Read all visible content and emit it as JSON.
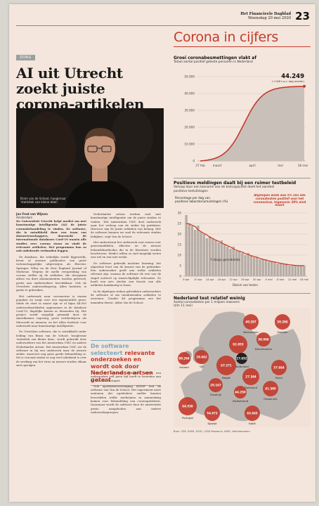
{
  "masthead": {
    "paper": "Het Financieele Dagblad",
    "date": "Woensdag 20 mei 2020",
    "page_number": "23"
  },
  "article": {
    "kicker": "ZORG",
    "headline": "AI uit Utrecht zoekt juiste corona-artikelen",
    "photo_caption_line1": "Bram van de Schoot, hoogleraar",
    "photo_caption_line2": "'statistiek van kleine data'.",
    "author": "Jan Fred van Wijnen",
    "place": "Amsterdam",
    "intro": "De Universiteit Utrecht helpt medici om met kunstmatige intelligentie (AI) de juiste coronabehandeling te vinden. De software, die is ontwikkeld door een team van datawetenschappers, doorzoekt de internationale databases Cord-19 waarin alle studies over corona staan en vindt de relevante artikelen. Het programma kan zo ook onbekende verbanden leggen.",
    "col1_paras": [
      "De database, die wekelijks wordt bijgewerkt, bevat al enorme publicaties van grote wetenschappelijke uitgeverijen als Elsevier, Springer, Wiley en de New England Journal of Medicine. Wegens de snelle verspreiding van corona stellen zij de artikelen, die doorgaans alleen via dure abonnementen worden geleverd, gratis aan onderzoekers beschikbaar. Ook de Utrechtse onderzoeksgroep, Allen Institute, is gratis te gebruiken.",
      "Het onderzoek naar coronavirus is enorm populair en zorgt voor een exponentiële groei. Sinds de start in maart zijn er al bijna 44.000 onderzoeksartikelen opgenomen in de database Cord-19, dagelijks komen er duizenden bij. Het project wordt mogelijk gemaakt door de Amerikaanse regering, grote techbedrijven als Microsoft en Amazon, en het Allen Institute voor onderzoek naar kunstmatige intelligentie.",
      "De Utrechtse software, die is ontwikkeld onder leiding van Bram van de Schoot, hoogleraar 'statistiek van kleine data', wordt gebruikt door onderzoekers van het Amsterdam UMC en andere Nederlandse artsen. Het Amsterdam UMC zet de software in bij een onderzoek naar de nieuwe ziekte, waarvoor nog geen goede behandeling is. Dit is cruciaal omdat er nog veel onbekend is over de werking van het virus en nieuwe studies elkaar snel opvolgen."
    ],
    "col2_paras": [
      "Nederlandse artsen werken snel met kunstmatige intelligentie om de juiste studies te vinden. 'Het Amsterdam UMC doet onderzoek naar het verloop van de ziekte bij patiënten. Hiervoor zijn de juiste artikelen van belang. Met de software kunnen we snel de relevante studies bekijken', zegt Van de Schoot.",
      "Het ondersteunt het onderzoek voor artsen over geneesmiddelen, effecten en de nieuwe behandelmethoden die in de literatuur worden beschreven. Medici willen zo snel mogelijk weten wat wel en wat niet werkt.",
      "De software gebruikt machine learning: het algoritme leert van de keuzes van de gebruiker. Een onderzoeker geeft aan welke artikelen relevant zijn, waarna de software de rest van de stapel sorteert op waarschijnlijke relevantie. Zo hoeft een arts slechts een fractie van alle artikelen handmatig te lezen.",
      "In de afgelopen weken gebruikten onderzoekers de software al om tienduizenden artikelen te screenen. 'Zonder dit programma zou het maanden duren', aldus Van de Schoot."
    ],
    "pullquote_lead": "De software selecteert",
    "pullquote_accent": "relevante onderzoeken en wordt ook door Nederlandse artsen getest",
    "col3_paras": [
      "voor de relevante artikelen, zodat een onderzoeker zelf geen tijd hoeft te besteden aan de rest van de stapel.",
      "Ook apothekersvereniging KNMP test de software van Van de Schoot. Het experiment moet aantonen dat apothekers sneller kunnen beoordelen welke medicijnen in aanmerking komen voor behandeling van coronapatiënten. Daarnaast wordt de software door de universiteit gratis aangeboden aan andere onderzoeksgroepen."
    ],
    "col4_paras": [
      "Tijdens de eerste weken was het programma vooral bedoeld om de grootste bulk van literatuur te doorzoeken. Nu kijkt het team ook naar andere toepassingen. 'De software kan in principe voor elk onderzoeksveld worden ingezet', zegt Van de Schoot."
    ]
  },
  "sidebar": {
    "title": "Corona in cijfers",
    "growth": {
      "title": "Groei coronabesmettingen vlakt af",
      "subtitle": "Totaal aantal positief geteste personen in Nederland",
      "last_value": "44.249",
      "last_note": "(+108 t.o.v. dag eerder)",
      "x_labels": [
        "27 feb",
        "maart",
        "april",
        "mei",
        "18 mei"
      ],
      "y_ticks": [
        "50.000",
        "40.000",
        "30.000",
        "20.000",
        "10.000",
        "0"
      ]
    },
    "positive": {
      "title": "Positieve meldingen daalt bij een ruimer testbeleid",
      "subtitle_line1": "Verloop door een toename van de testcapaciteit deelt het aandeel",
      "subtitle_line2": "positieve testuitslagen",
      "ylabel_line1": "Percentage per dag van",
      "ylabel_line2": "positieve laboratoriumuitslagen (%)",
      "annotation": "Afgelopen week was 5% van alle coronatesten positief voor het coronavirus, tegenover 29% eind maart",
      "avg_label": "7-daags gemiddelde",
      "x_labels": [
        "6 apr",
        "10 apr",
        "14 apr",
        "18 apr",
        "22 apr",
        "26 apr",
        "30 apr",
        "4 mei",
        "8 mei",
        "12 mei",
        "16 mei"
      ],
      "xlabel": "Datum van testen",
      "y_ticks": [
        "30",
        "25",
        "20",
        "15",
        "10",
        "5",
        "0"
      ]
    },
    "map": {
      "title": "Nederland test relatief weinig",
      "subtitle_line1": "Aantal coronatesten per 1 miljoen inwoners",
      "subtitle_line2": "(t/m 11 mei)",
      "source": "Bron: CBS, RIVM, ECDC, GGD Research, WHO, Worldometers",
      "bubbles": [
        {
          "value": "40.287",
          "label": "Noorwegen"
        },
        {
          "value": "30.296",
          "label": "Zweden"
        },
        {
          "value": "29.662",
          "label": "UK"
        },
        {
          "value": "38.068",
          "label": "Denemarken"
        },
        {
          "value": "17.652",
          "label": "Nederland"
        },
        {
          "value": "67.271",
          "label": "België"
        },
        {
          "value": "27.344",
          "label": "Duitsland"
        },
        {
          "value": "37.664",
          "label": "Polen"
        },
        {
          "value": "20.167",
          "label": "Frankrijk"
        },
        {
          "value": "41.380",
          "label": "Oostenrijk"
        },
        {
          "value": "64.538",
          "label": "Portugal"
        },
        {
          "value": "54.973",
          "label": "Spanje"
        },
        {
          "value": "43.665",
          "label": "Italië"
        },
        {
          "value": "90.294",
          "label": "Ierland"
        },
        {
          "value": "44.250",
          "label": "Zwitserland"
        },
        {
          "value": "92.053",
          "label": ""
        }
      ]
    }
  },
  "chart_data": [
    {
      "type": "area",
      "title": "Groei coronabesmettingen vlakt af",
      "x": [
        "27 feb",
        "maart",
        "april",
        "mei",
        "18 mei"
      ],
      "values": [
        0,
        500,
        12000,
        39000,
        44249
      ],
      "ylim": [
        0,
        50000
      ]
    },
    {
      "type": "bar",
      "title": "Positieve meldingen daalt bij een ruimer testbeleid",
      "categories": [
        "6 apr",
        "7",
        "8",
        "9",
        "10 apr",
        "11",
        "12",
        "13",
        "14 apr",
        "15",
        "16",
        "17",
        "18 apr",
        "19",
        "20",
        "21",
        "22 apr",
        "23",
        "24",
        "25",
        "26 apr",
        "27",
        "28",
        "29",
        "30 apr",
        "1",
        "2",
        "3",
        "4 mei",
        "5",
        "6",
        "7",
        "8 mei",
        "9",
        "10",
        "11",
        "12 mei",
        "13",
        "14",
        "15",
        "16 mei"
      ],
      "values": [
        29,
        25,
        24,
        22,
        24,
        21,
        20,
        18,
        19,
        18,
        17,
        16,
        17,
        15,
        14,
        13,
        14,
        12,
        12,
        11,
        10,
        11,
        10,
        9,
        9,
        8,
        8,
        8,
        7,
        7,
        7,
        6,
        6,
        6,
        6,
        5,
        5,
        5,
        5,
        5,
        5
      ],
      "ylim": [
        0,
        30
      ]
    }
  ]
}
